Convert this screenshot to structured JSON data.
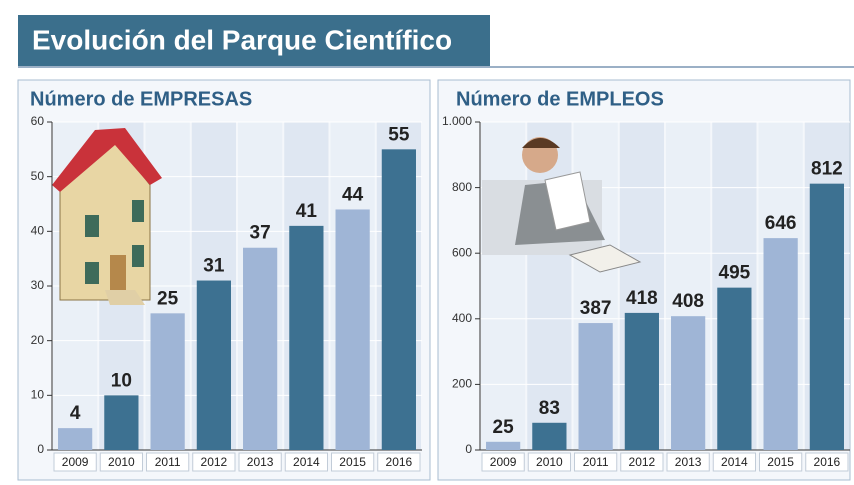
{
  "header": {
    "title": "Evolución del Parque Científico"
  },
  "chart_data": [
    {
      "type": "bar",
      "title": "Número de EMPRESAS",
      "categories": [
        "2009",
        "2010",
        "2011",
        "2012",
        "2013",
        "2014",
        "2015",
        "2016"
      ],
      "values": [
        4,
        10,
        25,
        31,
        37,
        41,
        44,
        55
      ],
      "colors": [
        "#9fb5d6",
        "#3d7191",
        "#9fb5d6",
        "#3d7191",
        "#9fb5d6",
        "#3d7191",
        "#9fb5d6",
        "#3d7191"
      ],
      "ylim": [
        0,
        60
      ],
      "yticks": [
        0,
        10,
        20,
        30,
        40,
        50,
        60
      ]
    },
    {
      "type": "bar",
      "title": "Número de EMPLEOS",
      "categories": [
        "2009",
        "2010",
        "2011",
        "2012",
        "2013",
        "2014",
        "2015",
        "2016"
      ],
      "values": [
        25,
        83,
        387,
        418,
        408,
        495,
        646,
        812
      ],
      "colors": [
        "#9fb5d6",
        "#3d7191",
        "#9fb5d6",
        "#3d7191",
        "#9fb5d6",
        "#3d7191",
        "#9fb5d6",
        "#3d7191"
      ],
      "ylim": [
        0,
        1000
      ],
      "yticks": [
        0,
        200,
        400,
        600,
        800,
        {
          "value": 1000,
          "label": "1.000"
        }
      ]
    }
  ]
}
